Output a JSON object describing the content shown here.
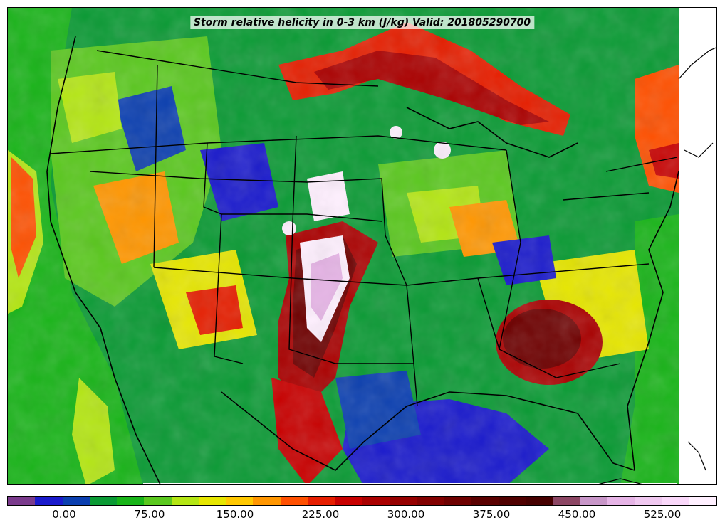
{
  "map": {
    "title": "Storm relative helicity in 0-3 km (J/kg) Valid: 201805290700"
  },
  "colorbar": {
    "colors": [
      "#7a3a8c",
      "#1a1acc",
      "#0b3fb0",
      "#0a9a34",
      "#18b418",
      "#5ac81e",
      "#b4e614",
      "#e6e600",
      "#ffc800",
      "#ff9600",
      "#ff5000",
      "#e61e00",
      "#c80000",
      "#aa0000",
      "#960000",
      "#820000",
      "#6e0000",
      "#5a0000",
      "#500000",
      "#460000",
      "#8c4664",
      "#c896c8",
      "#e6b4e6",
      "#f0c8f0",
      "#fad8fa",
      "#fff0ff"
    ],
    "ticks": [
      "0.00",
      "75.00",
      "150.00",
      "225.00",
      "300.00",
      "375.00",
      "450.00",
      "525.00"
    ]
  },
  "field_colors": {
    "background": "#0a9a34",
    "low": "#1a1acc",
    "medium": "#b4e614",
    "high": "#c80000",
    "extreme": "#fff0ff"
  }
}
